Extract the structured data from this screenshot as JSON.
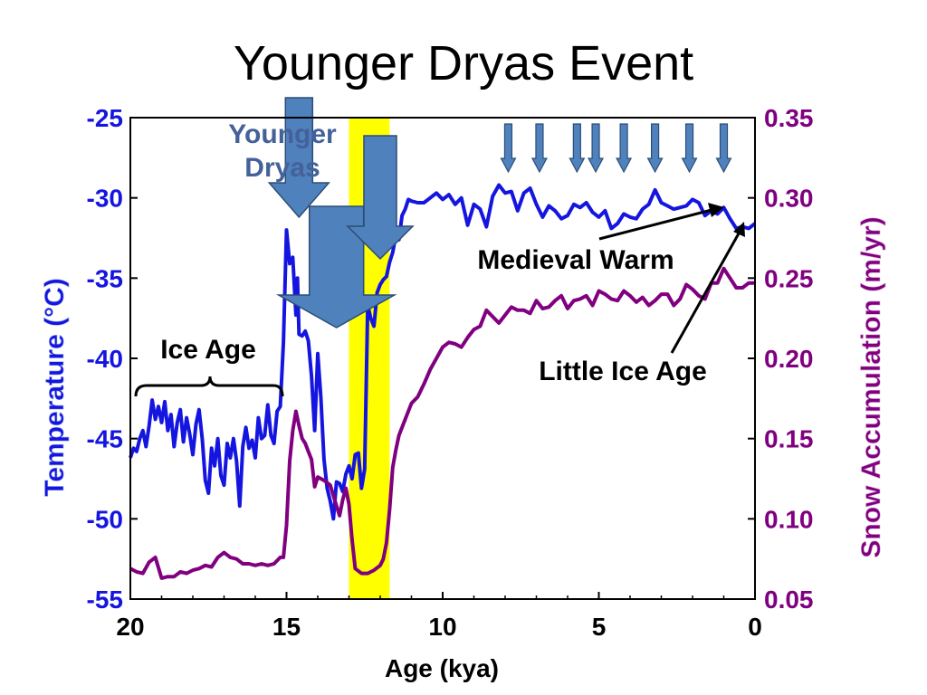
{
  "chart_data": {
    "type": "line",
    "title": "Younger Dryas Event",
    "xlabel": "Age (kya)",
    "ylabel_left": "Temperature (°C)",
    "ylabel_right": "Snow Accumulation (m/yr)",
    "xlim": [
      20,
      0
    ],
    "ylim_left": [
      -55,
      -25
    ],
    "ylim_right": [
      0.05,
      0.35
    ],
    "x_ticks": [
      "20",
      "15",
      "10",
      "5",
      "0"
    ],
    "x_tick_values": [
      20,
      15,
      10,
      5,
      0
    ],
    "y_left_ticks": [
      "-25",
      "-30",
      "-35",
      "-40",
      "-45",
      "-50",
      "-55"
    ],
    "y_left_tick_values": [
      -25,
      -30,
      -35,
      -40,
      -45,
      -50,
      -55
    ],
    "y_right_ticks": [
      "0.35",
      "0.30",
      "0.25",
      "0.20",
      "0.15",
      "0.10",
      "0.05"
    ],
    "y_right_tick_values": [
      0.35,
      0.3,
      0.25,
      0.2,
      0.15,
      0.1,
      0.05
    ],
    "grid": false,
    "highlight_band": {
      "x_from": 13.0,
      "x_to": 11.7,
      "color": "#ffff00"
    },
    "series": [
      {
        "axis": "left",
        "color": "#1515e0",
        "x": [
          20.0,
          19.9,
          19.8,
          19.7,
          19.6,
          19.5,
          19.4,
          19.3,
          19.2,
          19.1,
          19.0,
          18.9,
          18.8,
          18.7,
          18.6,
          18.5,
          18.4,
          18.3,
          18.2,
          18.1,
          18.0,
          17.9,
          17.8,
          17.7,
          17.6,
          17.5,
          17.4,
          17.3,
          17.2,
          17.1,
          17.0,
          16.9,
          16.8,
          16.7,
          16.6,
          16.5,
          16.4,
          16.3,
          16.2,
          16.1,
          16.0,
          15.9,
          15.8,
          15.7,
          15.6,
          15.5,
          15.4,
          15.3,
          15.2,
          15.1,
          15.0,
          14.9,
          14.8,
          14.7,
          14.65,
          14.6,
          14.5,
          14.4,
          14.3,
          14.2,
          14.1,
          14.0,
          13.9,
          13.8,
          13.7,
          13.6,
          13.5,
          13.4,
          13.3,
          13.2,
          13.1,
          13.0,
          12.9,
          12.8,
          12.7,
          12.6,
          12.5,
          12.4,
          12.3,
          12.2,
          12.1,
          12.0,
          11.9,
          11.8,
          11.7,
          11.6,
          11.5,
          11.4,
          11.3,
          11.2,
          11.1,
          11.0,
          10.8,
          10.6,
          10.4,
          10.2,
          10.0,
          9.8,
          9.6,
          9.4,
          9.2,
          9.0,
          8.8,
          8.6,
          8.4,
          8.2,
          8.0,
          7.8,
          7.6,
          7.4,
          7.2,
          7.0,
          6.8,
          6.6,
          6.4,
          6.2,
          6.0,
          5.8,
          5.6,
          5.4,
          5.2,
          5.0,
          4.8,
          4.6,
          4.4,
          4.2,
          4.0,
          3.8,
          3.6,
          3.4,
          3.2,
          3.0,
          2.8,
          2.6,
          2.4,
          2.2,
          2.0,
          1.8,
          1.6,
          1.4,
          1.2,
          1.0,
          0.8,
          0.6,
          0.4,
          0.2,
          0.0
        ],
        "values": [
          -46.2,
          -45.6,
          -45.8,
          -45.0,
          -44.5,
          -45.5,
          -44.2,
          -42.6,
          -43.8,
          -43.0,
          -44.0,
          -42.7,
          -44.5,
          -43.5,
          -45.5,
          -44.0,
          -43.2,
          -45.2,
          -43.7,
          -44.7,
          -46.0,
          -44.1,
          -43.2,
          -45.0,
          -47.6,
          -48.4,
          -45.6,
          -46.7,
          -45.0,
          -47.3,
          -47.9,
          -45.3,
          -46.2,
          -45.0,
          -46.4,
          -49.2,
          -45.5,
          -44.3,
          -45.6,
          -45.1,
          -46.2,
          -43.7,
          -45.0,
          -44.8,
          -42.9,
          -44.8,
          -45.3,
          -43.3,
          -43.0,
          -39.0,
          -32.0,
          -34.1,
          -33.7,
          -37.3,
          -35.0,
          -38.5,
          -38.6,
          -38.3,
          -38.9,
          -41.1,
          -44.5,
          -39.7,
          -42.4,
          -46.3,
          -48.1,
          -48.9,
          -50.0,
          -47.7,
          -47.8,
          -48.3,
          -47.2,
          -46.7,
          -47.5,
          -46.0,
          -45.9,
          -48.1,
          -46.9,
          -36.7,
          -37.5,
          -38.0,
          -35.9,
          -35.4,
          -35.1,
          -34.9,
          -34.0,
          -33.4,
          -32.3,
          -32.6,
          -31.1,
          -30.7,
          -30.1,
          -30.2,
          -30.3,
          -30.3,
          -30.0,
          -29.7,
          -30.1,
          -29.8,
          -30.4,
          -30.0,
          -31.7,
          -30.4,
          -30.7,
          -31.8,
          -29.9,
          -29.2,
          -29.7,
          -29.6,
          -30.8,
          -29.7,
          -29.4,
          -30.4,
          -31.2,
          -30.5,
          -30.8,
          -31.3,
          -31.1,
          -30.4,
          -30.6,
          -30.3,
          -30.9,
          -31.2,
          -30.8,
          -31.9,
          -31.6,
          -31.0,
          -31.2,
          -31.3,
          -30.7,
          -30.4,
          -29.5,
          -30.3,
          -30.5,
          -30.7,
          -30.6,
          -30.5,
          -30.1,
          -30.3,
          -31.1,
          -30.8,
          -31.0,
          -30.6,
          -31.3,
          -31.9,
          -31.8,
          -31.9,
          -31.6
        ]
      },
      {
        "axis": "right",
        "color": "#800080",
        "x": [
          20.0,
          19.8,
          19.6,
          19.4,
          19.2,
          19.0,
          18.8,
          18.6,
          18.4,
          18.2,
          18.0,
          17.8,
          17.6,
          17.4,
          17.2,
          17.0,
          16.8,
          16.6,
          16.4,
          16.2,
          16.0,
          15.8,
          15.6,
          15.4,
          15.2,
          15.1,
          15.0,
          14.9,
          14.8,
          14.7,
          14.6,
          14.5,
          14.4,
          14.3,
          14.2,
          14.1,
          14.0,
          13.8,
          13.6,
          13.4,
          13.3,
          13.2,
          13.1,
          13.0,
          12.9,
          12.8,
          12.6,
          12.4,
          12.2,
          12.0,
          11.9,
          11.8,
          11.7,
          11.6,
          11.5,
          11.4,
          11.2,
          11.0,
          10.8,
          10.6,
          10.4,
          10.2,
          10.0,
          9.8,
          9.6,
          9.4,
          9.2,
          9.0,
          8.8,
          8.6,
          8.4,
          8.2,
          8.0,
          7.8,
          7.6,
          7.4,
          7.2,
          7.0,
          6.8,
          6.6,
          6.4,
          6.2,
          6.0,
          5.8,
          5.6,
          5.4,
          5.2,
          5.0,
          4.8,
          4.6,
          4.4,
          4.2,
          4.0,
          3.8,
          3.6,
          3.4,
          3.2,
          3.0,
          2.8,
          2.6,
          2.4,
          2.2,
          2.0,
          1.8,
          1.6,
          1.4,
          1.2,
          1.0,
          0.8,
          0.6,
          0.4,
          0.2,
          0.0
        ],
        "values": [
          0.069,
          0.067,
          0.066,
          0.073,
          0.076,
          0.063,
          0.064,
          0.064,
          0.067,
          0.066,
          0.068,
          0.069,
          0.071,
          0.07,
          0.076,
          0.079,
          0.076,
          0.075,
          0.072,
          0.072,
          0.071,
          0.072,
          0.071,
          0.072,
          0.076,
          0.076,
          0.096,
          0.136,
          0.155,
          0.167,
          0.158,
          0.15,
          0.147,
          0.142,
          0.137,
          0.12,
          0.126,
          0.124,
          0.121,
          0.108,
          0.102,
          0.112,
          0.119,
          0.109,
          0.087,
          0.069,
          0.066,
          0.066,
          0.068,
          0.071,
          0.075,
          0.085,
          0.106,
          0.132,
          0.143,
          0.152,
          0.162,
          0.172,
          0.176,
          0.184,
          0.193,
          0.2,
          0.207,
          0.21,
          0.209,
          0.207,
          0.213,
          0.218,
          0.22,
          0.23,
          0.226,
          0.222,
          0.227,
          0.232,
          0.23,
          0.23,
          0.228,
          0.236,
          0.231,
          0.232,
          0.236,
          0.239,
          0.231,
          0.236,
          0.237,
          0.239,
          0.233,
          0.242,
          0.24,
          0.237,
          0.236,
          0.242,
          0.239,
          0.235,
          0.238,
          0.233,
          0.236,
          0.24,
          0.24,
          0.233,
          0.237,
          0.246,
          0.243,
          0.239,
          0.237,
          0.247,
          0.247,
          0.256,
          0.25,
          0.244,
          0.244,
          0.247,
          0.247
        ]
      }
    ],
    "annotations": [
      {
        "text": "Younger",
        "style": "yd-label"
      },
      {
        "text": "Dryas",
        "style": "yd-label"
      },
      {
        "text": "Ice Age"
      },
      {
        "text": "Medieval Warm",
        "points_to_x": 0.9
      },
      {
        "text": "Little Ice Age",
        "points_to_x": 0.2
      }
    ],
    "markers": {
      "big_arrows_at_x": [
        14.6,
        13.4,
        12.0
      ],
      "small_arrows_at_x": [
        7.9,
        6.9,
        5.7,
        5.1,
        4.2,
        3.2,
        2.1,
        1.0
      ]
    }
  }
}
